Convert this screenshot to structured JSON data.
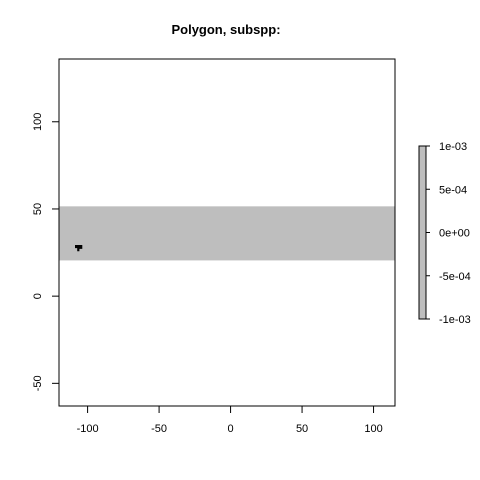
{
  "chart_data": {
    "type": "heatmap",
    "title": "Polygon, subspp:",
    "xlabel": "",
    "ylabel": "",
    "xlim": [
      -120,
      115
    ],
    "ylim": [
      -63,
      136
    ],
    "x_ticks": [
      -100,
      -50,
      0,
      50,
      100
    ],
    "y_ticks": [
      -50,
      0,
      50,
      100
    ],
    "x_tick_labels": [
      "-100",
      "-50",
      "0",
      "50",
      "100"
    ],
    "y_tick_labels": [
      "-50",
      "0",
      "50",
      "100"
    ],
    "band": {
      "x": [
        -120,
        115
      ],
      "y": [
        20.5,
        51.5
      ],
      "value": 0,
      "color": "#bebebe"
    },
    "polygon": {
      "points": [
        [
          -108.5,
          29.1
        ],
        [
          -104.0,
          29.1
        ],
        [
          -104.0,
          27.3
        ],
        [
          -106.0,
          27.3
        ],
        [
          -106.0,
          26.0
        ],
        [
          -107.0,
          26.0
        ],
        [
          -107.0,
          27.8
        ],
        [
          -108.5,
          27.8
        ]
      ],
      "color": "#000000"
    },
    "legend": {
      "position": "right",
      "range": [
        -0.001,
        0.001
      ],
      "ticks": [
        0.001,
        0.0005,
        0,
        -0.0005,
        -0.001
      ],
      "tick_labels": [
        "1e-03",
        "5e-04",
        "0e+00",
        "-5e-04",
        "-1e-03"
      ],
      "color": "#bebebe"
    }
  }
}
